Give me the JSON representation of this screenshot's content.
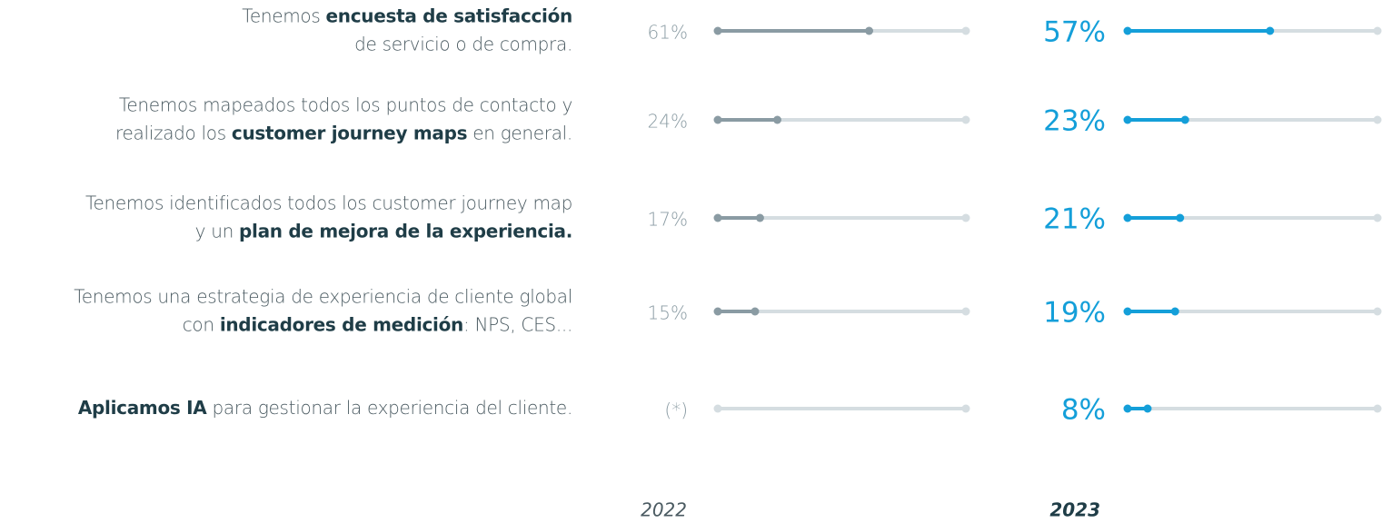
{
  "chart_data": {
    "type": "dumbbell",
    "categories": [
      [
        [
          {
            "text": "Tenemos "
          },
          {
            "text": "encuesta de satisfacción",
            "bold": true
          }
        ],
        [
          {
            "text": "de servicio o de compra."
          }
        ]
      ],
      [
        [
          {
            "text": "Tenemos mapeados todos los puntos de contacto y"
          }
        ],
        [
          {
            "text": "realizado los "
          },
          {
            "text": "customer journey maps",
            "bold": true
          },
          {
            "text": " en general."
          }
        ]
      ],
      [
        [
          {
            "text": "Tenemos identificados todos los customer journey map"
          }
        ],
        [
          {
            "text": "y un "
          },
          {
            "text": "plan de mejora de la experiencia.",
            "bold": true
          }
        ]
      ],
      [
        [
          {
            "text": "Tenemos una estrategia de experiencia de cliente global"
          }
        ],
        [
          {
            "text": "con "
          },
          {
            "text": "indicadores de medición",
            "bold": true
          },
          {
            "text": ": NPS, CES..."
          }
        ]
      ],
      [
        [
          {
            "text": "Aplicamos IA",
            "bold": true
          },
          {
            "text": " para gestionar la experiencia del cliente."
          }
        ]
      ]
    ],
    "series": [
      {
        "name": "2022",
        "color": "#8a9ba3",
        "values": [
          61,
          24,
          17,
          15,
          null
        ],
        "value_labels": [
          "61%",
          "24%",
          "17%",
          "15%",
          "(*)"
        ]
      },
      {
        "name": "2023",
        "color": "#149fd9",
        "values": [
          57,
          23,
          21,
          19,
          8
        ],
        "value_labels": [
          "57%",
          "23%",
          "21%",
          "19%",
          "8%"
        ]
      }
    ],
    "xlim": [
      0,
      100
    ],
    "track_color": "#d5dde1"
  }
}
